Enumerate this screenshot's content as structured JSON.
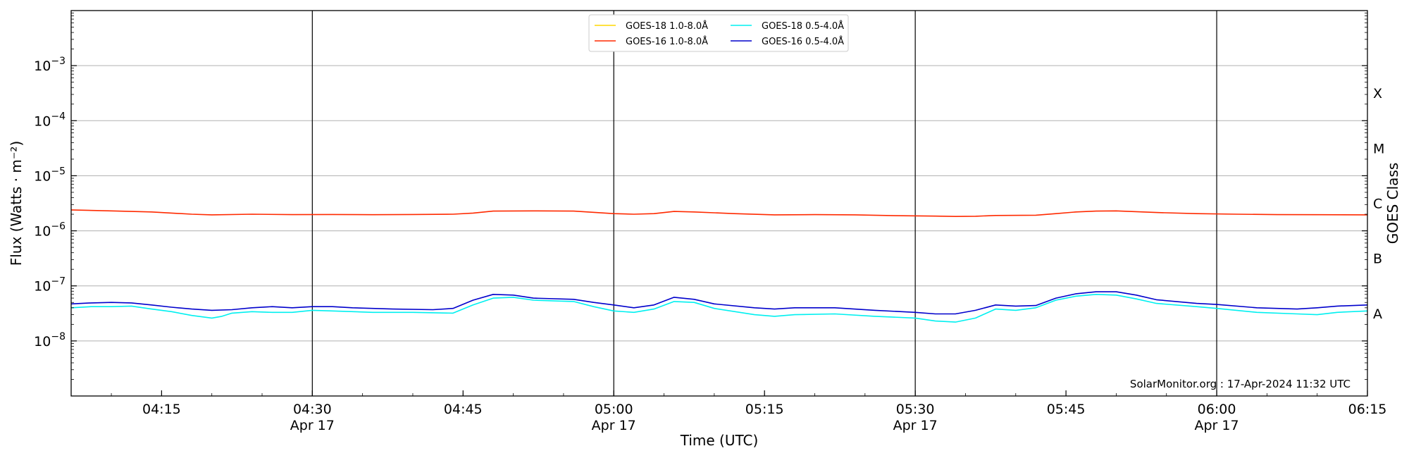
{
  "chart_data": {
    "type": "line",
    "xlabel": "Time (UTC)",
    "ylabel": "Flux (Watts · m⁻²)",
    "y2label": "GOES Class",
    "yscale": "log",
    "ylim": [
      1e-09,
      0.01
    ],
    "x_range": [
      "04:06",
      "06:15"
    ],
    "y_ticks": [
      {
        "value": 1e-08,
        "base": "10",
        "exp": "−8"
      },
      {
        "value": 1e-07,
        "base": "10",
        "exp": "−7"
      },
      {
        "value": 1e-06,
        "base": "10",
        "exp": "−6"
      },
      {
        "value": 1e-05,
        "base": "10",
        "exp": "−5"
      },
      {
        "value": 0.0001,
        "base": "10",
        "exp": "−4"
      },
      {
        "value": 0.001,
        "base": "10",
        "exp": "−3"
      }
    ],
    "x_ticks": [
      {
        "time": "04:15",
        "label": "04:15",
        "date": ""
      },
      {
        "time": "04:30",
        "label": "04:30",
        "date": "Apr 17"
      },
      {
        "time": "04:45",
        "label": "04:45",
        "date": ""
      },
      {
        "time": "05:00",
        "label": "05:00",
        "date": "Apr 17"
      },
      {
        "time": "05:15",
        "label": "05:15",
        "date": ""
      },
      {
        "time": "05:30",
        "label": "05:30",
        "date": "Apr 17"
      },
      {
        "time": "05:45",
        "label": "05:45",
        "date": ""
      },
      {
        "time": "06:00",
        "label": "06:00",
        "date": "Apr 17"
      },
      {
        "time": "06:15",
        "label": "06:15",
        "date": ""
      }
    ],
    "day_lines": [
      "04:30",
      "05:00",
      "05:30",
      "06:00"
    ],
    "goes_classes": [
      {
        "label": "A",
        "flux": 3.16e-08
      },
      {
        "label": "B",
        "flux": 3.16e-07
      },
      {
        "label": "C",
        "flux": 3.16e-06
      },
      {
        "label": "M",
        "flux": 3.16e-05
      },
      {
        "label": "X",
        "flux": 0.000316
      }
    ],
    "grid": true,
    "legend_position": "top-center",
    "series": [
      {
        "name": "GOES-18 1.0-8.0Å",
        "color": "#ffd700",
        "points": []
      },
      {
        "name": "GOES-16 1.0-8.0Å",
        "color": "#ff2a00",
        "points": [
          [
            "04:06",
            2.4e-06
          ],
          [
            "04:10",
            2.3e-06
          ],
          [
            "04:14",
            2.2e-06
          ],
          [
            "04:18",
            2e-06
          ],
          [
            "04:20",
            1.95e-06
          ],
          [
            "04:24",
            2e-06
          ],
          [
            "04:28",
            1.97e-06
          ],
          [
            "04:32",
            1.98e-06
          ],
          [
            "04:36",
            1.96e-06
          ],
          [
            "04:40",
            1.98e-06
          ],
          [
            "04:44",
            2e-06
          ],
          [
            "04:46",
            2.1e-06
          ],
          [
            "04:48",
            2.28e-06
          ],
          [
            "04:52",
            2.3e-06
          ],
          [
            "04:56",
            2.28e-06
          ],
          [
            "05:00",
            2.05e-06
          ],
          [
            "05:02",
            2e-06
          ],
          [
            "05:04",
            2.05e-06
          ],
          [
            "05:06",
            2.25e-06
          ],
          [
            "05:08",
            2.2e-06
          ],
          [
            "05:12",
            2.05e-06
          ],
          [
            "05:16",
            1.95e-06
          ],
          [
            "05:20",
            1.97e-06
          ],
          [
            "05:24",
            1.95e-06
          ],
          [
            "05:28",
            1.88e-06
          ],
          [
            "05:32",
            1.85e-06
          ],
          [
            "05:34",
            1.82e-06
          ],
          [
            "05:36",
            1.84e-06
          ],
          [
            "05:38",
            1.9e-06
          ],
          [
            "05:42",
            1.92e-06
          ],
          [
            "05:44",
            2.05e-06
          ],
          [
            "05:46",
            2.2e-06
          ],
          [
            "05:48",
            2.28e-06
          ],
          [
            "05:50",
            2.3e-06
          ],
          [
            "05:54",
            2.15e-06
          ],
          [
            "05:58",
            2.05e-06
          ],
          [
            "06:02",
            2e-06
          ],
          [
            "06:06",
            1.97e-06
          ],
          [
            "06:10",
            1.96e-06
          ],
          [
            "06:15",
            1.95e-06
          ]
        ]
      },
      {
        "name": "GOES-18 0.5-4.0Å",
        "color": "#00f0f0",
        "points": [
          [
            "04:06",
            4e-08
          ],
          [
            "04:08",
            4.2e-08
          ],
          [
            "04:10",
            4.2e-08
          ],
          [
            "04:12",
            4.3e-08
          ],
          [
            "04:14",
            3.8e-08
          ],
          [
            "04:16",
            3.4e-08
          ],
          [
            "04:18",
            2.9e-08
          ],
          [
            "04:20",
            2.6e-08
          ],
          [
            "04:21",
            2.8e-08
          ],
          [
            "04:22",
            3.2e-08
          ],
          [
            "04:24",
            3.4e-08
          ],
          [
            "04:26",
            3.3e-08
          ],
          [
            "04:28",
            3.3e-08
          ],
          [
            "04:30",
            3.6e-08
          ],
          [
            "04:32",
            3.5e-08
          ],
          [
            "04:36",
            3.3e-08
          ],
          [
            "04:40",
            3.3e-08
          ],
          [
            "04:44",
            3.2e-08
          ],
          [
            "04:46",
            4.5e-08
          ],
          [
            "04:48",
            6e-08
          ],
          [
            "04:50",
            6.2e-08
          ],
          [
            "04:52",
            5.5e-08
          ],
          [
            "04:56",
            5.2e-08
          ],
          [
            "04:58",
            4.2e-08
          ],
          [
            "05:00",
            3.5e-08
          ],
          [
            "05:02",
            3.3e-08
          ],
          [
            "05:04",
            3.8e-08
          ],
          [
            "05:06",
            5.2e-08
          ],
          [
            "05:08",
            5e-08
          ],
          [
            "05:10",
            3.9e-08
          ],
          [
            "05:14",
            3e-08
          ],
          [
            "05:16",
            2.8e-08
          ],
          [
            "05:18",
            3e-08
          ],
          [
            "05:22",
            3.1e-08
          ],
          [
            "05:26",
            2.8e-08
          ],
          [
            "05:30",
            2.6e-08
          ],
          [
            "05:32",
            2.3e-08
          ],
          [
            "05:34",
            2.2e-08
          ],
          [
            "05:36",
            2.6e-08
          ],
          [
            "05:38",
            3.8e-08
          ],
          [
            "05:40",
            3.6e-08
          ],
          [
            "05:42",
            4e-08
          ],
          [
            "05:44",
            5.5e-08
          ],
          [
            "05:46",
            6.5e-08
          ],
          [
            "05:48",
            7e-08
          ],
          [
            "05:50",
            6.8e-08
          ],
          [
            "05:52",
            5.8e-08
          ],
          [
            "05:54",
            4.8e-08
          ],
          [
            "05:58",
            4.2e-08
          ],
          [
            "06:00",
            3.9e-08
          ],
          [
            "06:04",
            3.3e-08
          ],
          [
            "06:08",
            3.1e-08
          ],
          [
            "06:10",
            3e-08
          ],
          [
            "06:12",
            3.3e-08
          ],
          [
            "06:15",
            3.5e-08
          ]
        ]
      },
      {
        "name": "GOES-16 0.5-4.0Å",
        "color": "#0000cc",
        "points": [
          [
            "04:06",
            4.7e-08
          ],
          [
            "04:08",
            4.9e-08
          ],
          [
            "04:10",
            5e-08
          ],
          [
            "04:12",
            4.9e-08
          ],
          [
            "04:14",
            4.5e-08
          ],
          [
            "04:16",
            4.1e-08
          ],
          [
            "04:18",
            3.8e-08
          ],
          [
            "04:20",
            3.6e-08
          ],
          [
            "04:22",
            3.7e-08
          ],
          [
            "04:24",
            4e-08
          ],
          [
            "04:26",
            4.2e-08
          ],
          [
            "04:28",
            4e-08
          ],
          [
            "04:30",
            4.2e-08
          ],
          [
            "04:32",
            4.2e-08
          ],
          [
            "04:34",
            4e-08
          ],
          [
            "04:38",
            3.8e-08
          ],
          [
            "04:42",
            3.7e-08
          ],
          [
            "04:44",
            3.9e-08
          ],
          [
            "04:46",
            5.5e-08
          ],
          [
            "04:48",
            7e-08
          ],
          [
            "04:50",
            6.8e-08
          ],
          [
            "04:52",
            6e-08
          ],
          [
            "04:56",
            5.7e-08
          ],
          [
            "04:58",
            5e-08
          ],
          [
            "05:00",
            4.5e-08
          ],
          [
            "05:02",
            4e-08
          ],
          [
            "05:04",
            4.5e-08
          ],
          [
            "05:06",
            6.2e-08
          ],
          [
            "05:08",
            5.7e-08
          ],
          [
            "05:10",
            4.7e-08
          ],
          [
            "05:14",
            4e-08
          ],
          [
            "05:16",
            3.8e-08
          ],
          [
            "05:18",
            4e-08
          ],
          [
            "05:22",
            4e-08
          ],
          [
            "05:26",
            3.6e-08
          ],
          [
            "05:30",
            3.3e-08
          ],
          [
            "05:32",
            3.1e-08
          ],
          [
            "05:34",
            3.1e-08
          ],
          [
            "05:36",
            3.6e-08
          ],
          [
            "05:38",
            4.5e-08
          ],
          [
            "05:40",
            4.3e-08
          ],
          [
            "05:42",
            4.4e-08
          ],
          [
            "05:44",
            6e-08
          ],
          [
            "05:46",
            7.2e-08
          ],
          [
            "05:48",
            7.8e-08
          ],
          [
            "05:50",
            7.8e-08
          ],
          [
            "05:52",
            6.8e-08
          ],
          [
            "05:54",
            5.6e-08
          ],
          [
            "05:58",
            4.8e-08
          ],
          [
            "06:00",
            4.6e-08
          ],
          [
            "06:04",
            4e-08
          ],
          [
            "06:08",
            3.8e-08
          ],
          [
            "06:10",
            4e-08
          ],
          [
            "06:12",
            4.3e-08
          ],
          [
            "06:15",
            4.5e-08
          ]
        ]
      }
    ],
    "annotation": "SolarMonitor.org : 17-Apr-2024 11:32 UTC"
  }
}
